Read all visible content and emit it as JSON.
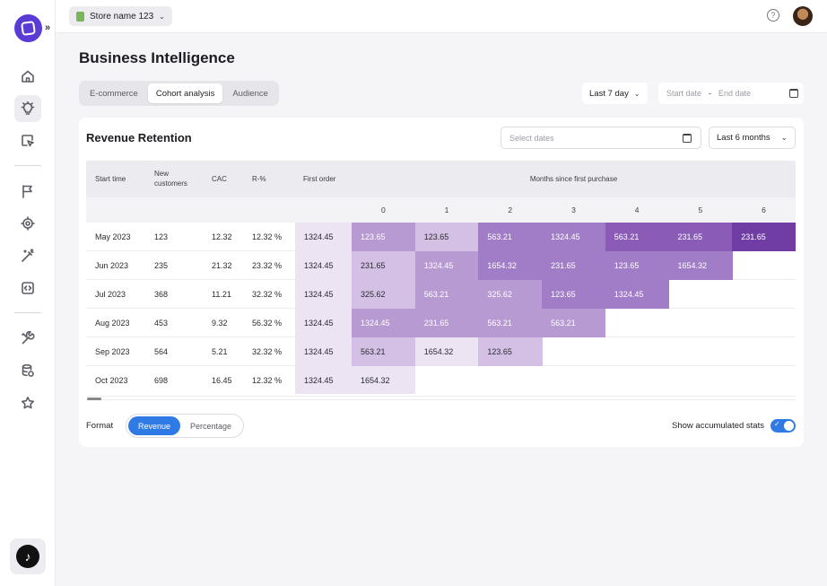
{
  "topbar": {
    "store_name": "Store name 123",
    "help_icon": "?"
  },
  "page": {
    "title": "Business Intelligence"
  },
  "tabs": [
    {
      "label": "E-commerce",
      "active": false
    },
    {
      "label": "Cohort analysis",
      "active": true
    },
    {
      "label": "Audience",
      "active": false
    }
  ],
  "filters": {
    "range_label": "Last 7 day",
    "start_placeholder": "Start date",
    "range_separator": "-",
    "end_placeholder": "End date"
  },
  "card": {
    "title": "Revenue Retention",
    "select_dates_placeholder": "Select dates",
    "months_label": "Last 6 months"
  },
  "table": {
    "headers": {
      "start_time": "Start time",
      "new_customers": "New customers",
      "cac": "CAC",
      "r_pct": "R-%",
      "first_order": "First order",
      "months_since": "Months since first purchase"
    },
    "month_indices": [
      "0",
      "1",
      "2",
      "3",
      "4",
      "5",
      "6"
    ],
    "rows": [
      {
        "start": "May 2023",
        "new": "123",
        "cac": "12.32",
        "r": "12.32 %",
        "first": "1324.45",
        "months": [
          "123.65",
          "123.65",
          "563.21",
          "1324.45",
          "563.21",
          "231.65",
          "231.65"
        ]
      },
      {
        "start": "Jun 2023",
        "new": "235",
        "cac": "21.32",
        "r": "23.32 %",
        "first": "1324.45",
        "months": [
          "231.65",
          "1324.45",
          "1654.32",
          "231.65",
          "123.65",
          "1654.32"
        ]
      },
      {
        "start": "Jul 2023",
        "new": "368",
        "cac": "11.21",
        "r": "32.32 %",
        "first": "1324.45",
        "months": [
          "325.62",
          "563.21",
          "325.62",
          "123.65",
          "1324.45"
        ]
      },
      {
        "start": "Aug 2023",
        "new": "453",
        "cac": "9.32",
        "r": "56.32 %",
        "first": "1324.45",
        "months": [
          "1324.45",
          "231.65",
          "563.21",
          "563.21"
        ]
      },
      {
        "start": "Sep 2023",
        "new": "564",
        "cac": "5.21",
        "r": "32.32 %",
        "first": "1324.45",
        "months": [
          "563.21",
          "1654.32",
          "123.65"
        ]
      },
      {
        "start": "Oct 2023",
        "new": "698",
        "cac": "16.45",
        "r": "12.32 %",
        "first": "1324.45",
        "months": [
          "1654.32"
        ]
      }
    ],
    "heat_colors": [
      "#6f3da3",
      "#8a5cb8",
      "#a07dc6",
      "#b89ad3",
      "#d3c0e4",
      "#ece4f3"
    ],
    "heat_levels": [
      [
        3,
        4,
        2,
        2,
        1,
        1,
        0
      ],
      [
        4,
        3,
        2,
        2,
        2,
        2
      ],
      [
        4,
        3,
        3,
        2,
        2
      ],
      [
        3,
        3,
        3,
        3
      ],
      [
        4,
        5,
        4
      ],
      [
        5
      ]
    ]
  },
  "footer": {
    "format_label": "Format",
    "format_options": [
      {
        "label": "Revenue",
        "active": true
      },
      {
        "label": "Percentage",
        "active": false
      }
    ],
    "accumulated_label": "Show accumulated stats",
    "accumulated_on": true
  },
  "icons": {
    "sidebar": [
      "home-icon",
      "lightbulb-icon",
      "cursor-click-icon",
      "flag-icon",
      "target-icon",
      "magic-wand-icon",
      "code-icon",
      "tools-icon",
      "database-icon",
      "star-icon"
    ],
    "tiktok": "tiktok-icon"
  }
}
